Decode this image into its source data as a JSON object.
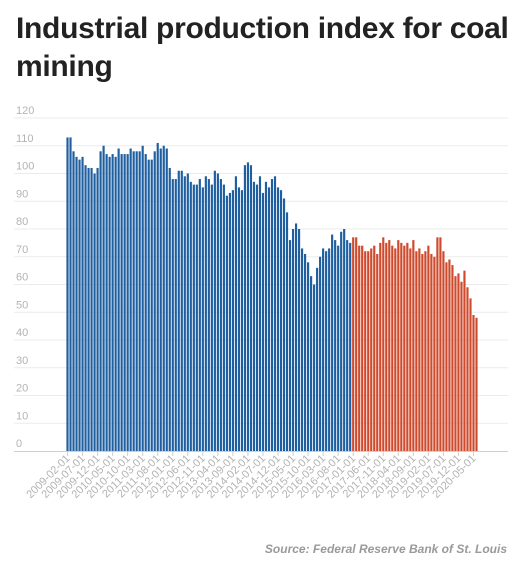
{
  "title": "Industrial production index for coal mining",
  "source": "Source: Federal Reserve Bank of St. Louis",
  "colors": {
    "before": "#1f5fa0",
    "after": "#cf4a2c",
    "grid": "#ebebeb",
    "tick_text": "#b3b3b3",
    "title": "#222222"
  },
  "chart_data": {
    "type": "bar",
    "title": "Industrial production index for coal mining",
    "xlabel": "",
    "ylabel": "",
    "ylim": [
      0,
      120
    ],
    "yticks": [
      0,
      10,
      20,
      30,
      40,
      50,
      60,
      70,
      80,
      90,
      100,
      110,
      120
    ],
    "grid": true,
    "legend": "none",
    "color_split_category": "2017-01-01",
    "x_tick_labels": [
      "2009-02-01",
      "2009-07-01",
      "2009-12-01",
      "2010-05-01",
      "2010-10-01",
      "2011-03-01",
      "2011-08-01",
      "2012-01-01",
      "2012-06-01",
      "2012-11-01",
      "2013-04-01",
      "2013-09-01",
      "2014-02-01",
      "2014-07-01",
      "2014-12-01",
      "2015-05-01",
      "2015-10-01",
      "2016-03-01",
      "2016-08-01",
      "2017-01-01",
      "2017-06-01",
      "2017-11-01",
      "2018-04-01",
      "2018-09-01",
      "2019-02-01",
      "2019-07-01",
      "2019-12-01",
      "2020-05-01"
    ],
    "start_month": "2009-02",
    "values": [
      113,
      113,
      108,
      106,
      105,
      106,
      103,
      102,
      102,
      100,
      102,
      108,
      110,
      107,
      106,
      107,
      106,
      109,
      107,
      107,
      107,
      109,
      108,
      108,
      108,
      110,
      107,
      105,
      105,
      108,
      111,
      109,
      110,
      109,
      102,
      98,
      98,
      101,
      101,
      99,
      100,
      97,
      96,
      96,
      98,
      95,
      99,
      98,
      96,
      101,
      100,
      98,
      96,
      92,
      93,
      94,
      99,
      95,
      94,
      103,
      104,
      103,
      97,
      96,
      99,
      93,
      97,
      95,
      98,
      99,
      95,
      94,
      91,
      86,
      76,
      80,
      82,
      80,
      73,
      71,
      68,
      63,
      60,
      66,
      70,
      73,
      72,
      73,
      78,
      76,
      74,
      79,
      80,
      76,
      75,
      77,
      77,
      74,
      74,
      72,
      72,
      73,
      74,
      71,
      75,
      77,
      75,
      76,
      74,
      73,
      76,
      75,
      74,
      75,
      73,
      76,
      72,
      73,
      71,
      72,
      74,
      71,
      70,
      77,
      77,
      72,
      68,
      69,
      67,
      63,
      64,
      61,
      65,
      59,
      55,
      49,
      48
    ]
  }
}
